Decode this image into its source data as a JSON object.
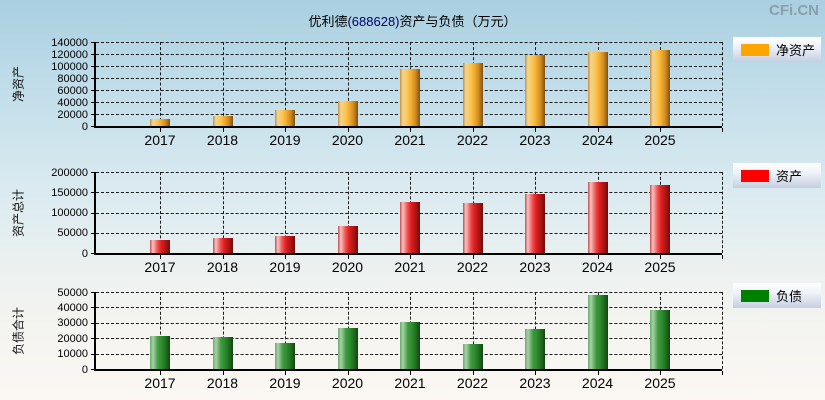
{
  "page": {
    "title_part1": "优利德",
    "title_code": "(688628)",
    "title_part2": "资产与负债（万元）",
    "watermark": "CFi.CN"
  },
  "colors": {
    "net_assets_swatch": "#FFA500",
    "assets_swatch": "#FF0000",
    "liabilities_swatch": "#008000",
    "title_code_color": "#000066",
    "watermark_color": "#8A9FAE",
    "grid_color": "#1A1A1A"
  },
  "chart_data": [
    {
      "type": "bar",
      "name": "net-assets",
      "axis_title": "净资产",
      "legend_label": "净资产",
      "color_key": "orange",
      "swatch_color": "#FFA500",
      "ylim": [
        0,
        140000
      ],
      "ytick_step": 20000,
      "yticks": [
        0,
        20000,
        40000,
        60000,
        80000,
        100000,
        120000,
        140000
      ],
      "grid": true,
      "legend_position": "right",
      "categories": [
        "2017",
        "2018",
        "2019",
        "2020",
        "2021",
        "2022",
        "2023",
        "2024",
        "2025"
      ],
      "values": [
        11500,
        16700,
        26700,
        41700,
        95000,
        105500,
        118000,
        124000,
        126500
      ]
    },
    {
      "type": "bar",
      "name": "total-assets",
      "axis_title": "资产总计",
      "legend_label": "资产",
      "color_key": "red",
      "swatch_color": "#FF0000",
      "ylim": [
        0,
        200000
      ],
      "ytick_step": 50000,
      "yticks": [
        0,
        50000,
        100000,
        150000,
        200000
      ],
      "grid": true,
      "legend_position": "right",
      "categories": [
        "2017",
        "2018",
        "2019",
        "2020",
        "2021",
        "2022",
        "2023",
        "2024",
        "2025"
      ],
      "values": [
        31000,
        37500,
        43000,
        67000,
        125000,
        123000,
        146000,
        175000,
        169000
      ]
    },
    {
      "type": "bar",
      "name": "total-liabilities",
      "axis_title": "负债合计",
      "legend_label": "负债",
      "color_key": "green",
      "swatch_color": "#008000",
      "ylim": [
        0,
        50000
      ],
      "ytick_step": 10000,
      "yticks": [
        0,
        10000,
        20000,
        30000,
        40000,
        50000
      ],
      "grid": true,
      "legend_position": "right",
      "categories": [
        "2017",
        "2018",
        "2019",
        "2020",
        "2021",
        "2022",
        "2023",
        "2024",
        "2025"
      ],
      "values": [
        21300,
        20800,
        17200,
        26600,
        30500,
        16300,
        25800,
        47800,
        38300
      ]
    }
  ]
}
